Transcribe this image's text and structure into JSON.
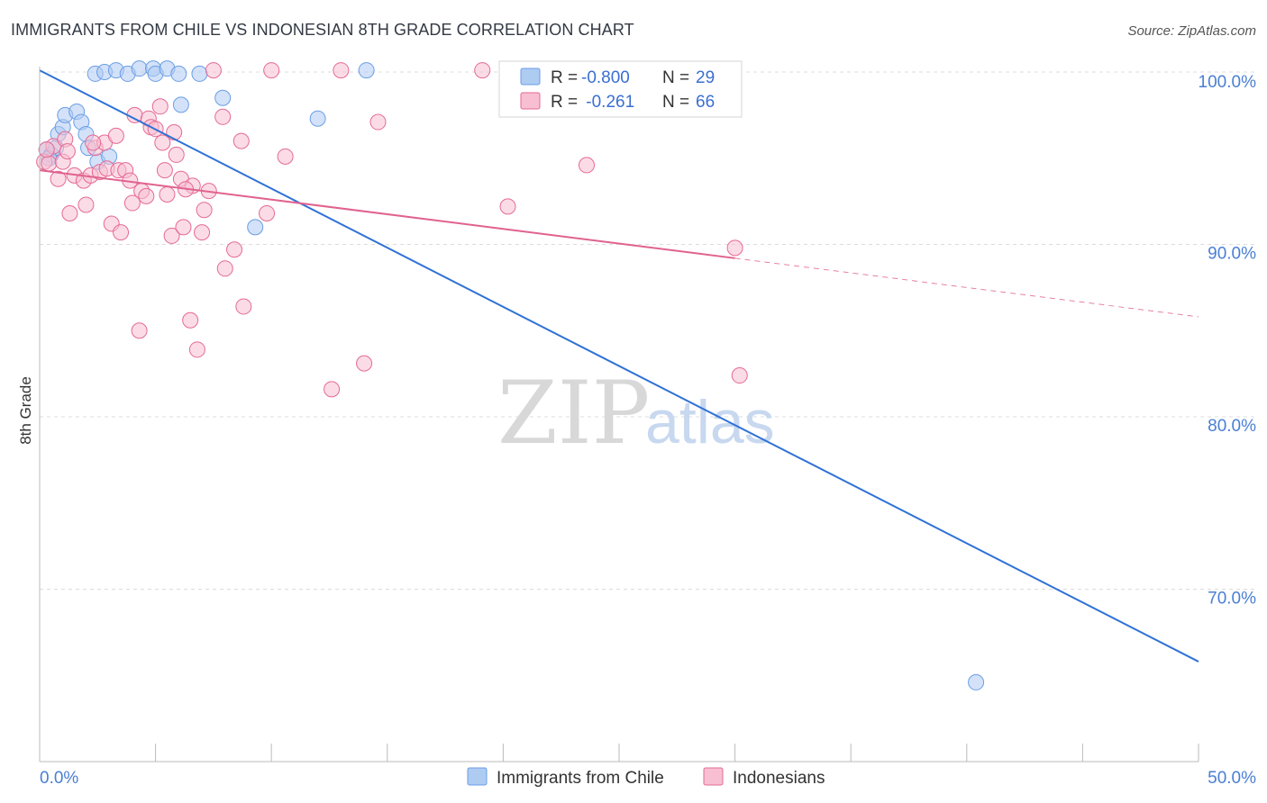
{
  "chart_data": {
    "type": "scatter",
    "title": "IMMIGRANTS FROM CHILE VS INDONESIAN 8TH GRADE CORRELATION CHART",
    "source": "Source: ZipAtlas.com",
    "ylabel": "8th Grade",
    "xlabel": "",
    "xlim": [
      0,
      50
    ],
    "ylim": [
      60,
      100
    ],
    "x_tick_labels": [
      "0.0%",
      "50.0%"
    ],
    "y_ticks": [
      {
        "value": 100,
        "label": "100.0%"
      },
      {
        "value": 90,
        "label": "90.0%"
      },
      {
        "value": 80,
        "label": "80.0%"
      },
      {
        "value": 70,
        "label": "70.0%"
      }
    ],
    "watermark": {
      "zip": "ZIP",
      "atlas": "atlas"
    },
    "legend": [
      {
        "r_label": "R =",
        "r_value": "-0.800",
        "n_label": "N =",
        "n_value": "29"
      },
      {
        "r_label": "R =",
        "r_value": " -0.261",
        "n_label": "N =",
        "n_value": "66"
      }
    ],
    "series": [
      {
        "name": "Immigrants from Chile",
        "color": "#6b9ee6",
        "fill": "#aecbf2",
        "points": [
          [
            0.3,
            95.5
          ],
          [
            0.5,
            95.2
          ],
          [
            0.7,
            95.6
          ],
          [
            0.8,
            96.4
          ],
          [
            1.0,
            96.8
          ],
          [
            1.1,
            97.5
          ],
          [
            1.6,
            97.7
          ],
          [
            1.8,
            97.1
          ],
          [
            2.0,
            96.4
          ],
          [
            2.1,
            95.6
          ],
          [
            2.5,
            94.8
          ],
          [
            3.0,
            95.1
          ],
          [
            2.4,
            99.9
          ],
          [
            2.8,
            100.0
          ],
          [
            3.3,
            100.1
          ],
          [
            3.8,
            99.9
          ],
          [
            4.3,
            100.2
          ],
          [
            4.9,
            100.2
          ],
          [
            5.0,
            99.9
          ],
          [
            5.5,
            100.2
          ],
          [
            6.0,
            99.9
          ],
          [
            6.1,
            98.1
          ],
          [
            6.9,
            99.9
          ],
          [
            7.9,
            98.5
          ],
          [
            9.3,
            91.0
          ],
          [
            12.0,
            97.3
          ],
          [
            14.1,
            100.1
          ],
          [
            40.4,
            64.6
          ],
          [
            0.4,
            95.0
          ]
        ],
        "trend": {
          "x0": 0,
          "y0": 100.1,
          "x1": 50,
          "y1": 65.8
        }
      },
      {
        "name": "Indonesians",
        "color": "#e56a95",
        "fill": "#f8bfd2",
        "points": [
          [
            0.2,
            94.8
          ],
          [
            0.4,
            94.7
          ],
          [
            0.6,
            95.7
          ],
          [
            0.8,
            93.8
          ],
          [
            1.0,
            94.8
          ],
          [
            1.1,
            96.1
          ],
          [
            1.3,
            91.8
          ],
          [
            1.5,
            94.0
          ],
          [
            1.9,
            93.7
          ],
          [
            2.0,
            92.3
          ],
          [
            2.2,
            94.0
          ],
          [
            2.4,
            95.6
          ],
          [
            2.6,
            94.2
          ],
          [
            2.8,
            95.9
          ],
          [
            2.9,
            94.4
          ],
          [
            3.1,
            91.2
          ],
          [
            3.3,
            96.3
          ],
          [
            3.4,
            94.3
          ],
          [
            3.5,
            90.7
          ],
          [
            3.7,
            94.3
          ],
          [
            4.0,
            92.4
          ],
          [
            4.1,
            97.5
          ],
          [
            4.3,
            85.0
          ],
          [
            4.4,
            93.1
          ],
          [
            4.6,
            92.8
          ],
          [
            4.7,
            97.3
          ],
          [
            4.8,
            96.8
          ],
          [
            5.0,
            96.7
          ],
          [
            5.2,
            98.0
          ],
          [
            5.3,
            95.9
          ],
          [
            5.4,
            94.3
          ],
          [
            5.5,
            92.9
          ],
          [
            5.7,
            90.5
          ],
          [
            5.9,
            95.2
          ],
          [
            6.1,
            93.8
          ],
          [
            6.2,
            91.0
          ],
          [
            6.5,
            85.6
          ],
          [
            6.6,
            93.4
          ],
          [
            6.8,
            83.9
          ],
          [
            7.0,
            90.7
          ],
          [
            7.1,
            92.0
          ],
          [
            7.3,
            93.1
          ],
          [
            7.5,
            100.1
          ],
          [
            7.9,
            97.4
          ],
          [
            8.0,
            88.6
          ],
          [
            8.4,
            89.7
          ],
          [
            8.7,
            96.0
          ],
          [
            8.8,
            86.4
          ],
          [
            9.8,
            91.8
          ],
          [
            10.0,
            100.1
          ],
          [
            10.6,
            95.1
          ],
          [
            12.6,
            81.6
          ],
          [
            13.0,
            100.1
          ],
          [
            14.0,
            83.1
          ],
          [
            14.6,
            97.1
          ],
          [
            19.1,
            100.1
          ],
          [
            20.2,
            92.2
          ],
          [
            23.6,
            94.6
          ],
          [
            30.0,
            89.8
          ],
          [
            30.2,
            82.4
          ],
          [
            0.3,
            95.5
          ],
          [
            1.2,
            95.4
          ],
          [
            2.3,
            95.9
          ],
          [
            3.9,
            93.7
          ],
          [
            6.3,
            93.2
          ],
          [
            5.8,
            96.5
          ]
        ],
        "trend": {
          "x0": 0,
          "y0": 94.3,
          "x1": 30,
          "y1": 89.2
        },
        "trend_extension": {
          "x0": 30,
          "y0": 89.2,
          "x1": 50,
          "y1": 85.8
        }
      }
    ]
  }
}
